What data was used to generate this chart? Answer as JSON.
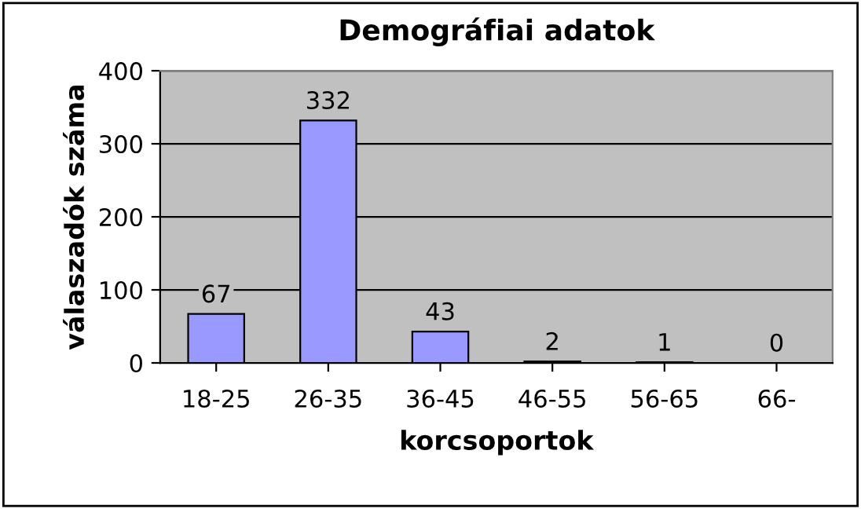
{
  "chart_data": {
    "type": "bar",
    "title": "Demográfiai adatok",
    "xlabel": "korcsoportok",
    "ylabel": "válaszadók száma",
    "categories": [
      "18-25",
      "26-35",
      "36-45",
      "46-55",
      "56-65",
      "66-"
    ],
    "values": [
      67,
      332,
      43,
      2,
      1,
      0
    ],
    "color": "#9999ff",
    "ylim": [
      0,
      400
    ],
    "yticks": [
      0,
      100,
      200,
      300,
      400
    ],
    "grid": "y",
    "data_labels": true
  }
}
